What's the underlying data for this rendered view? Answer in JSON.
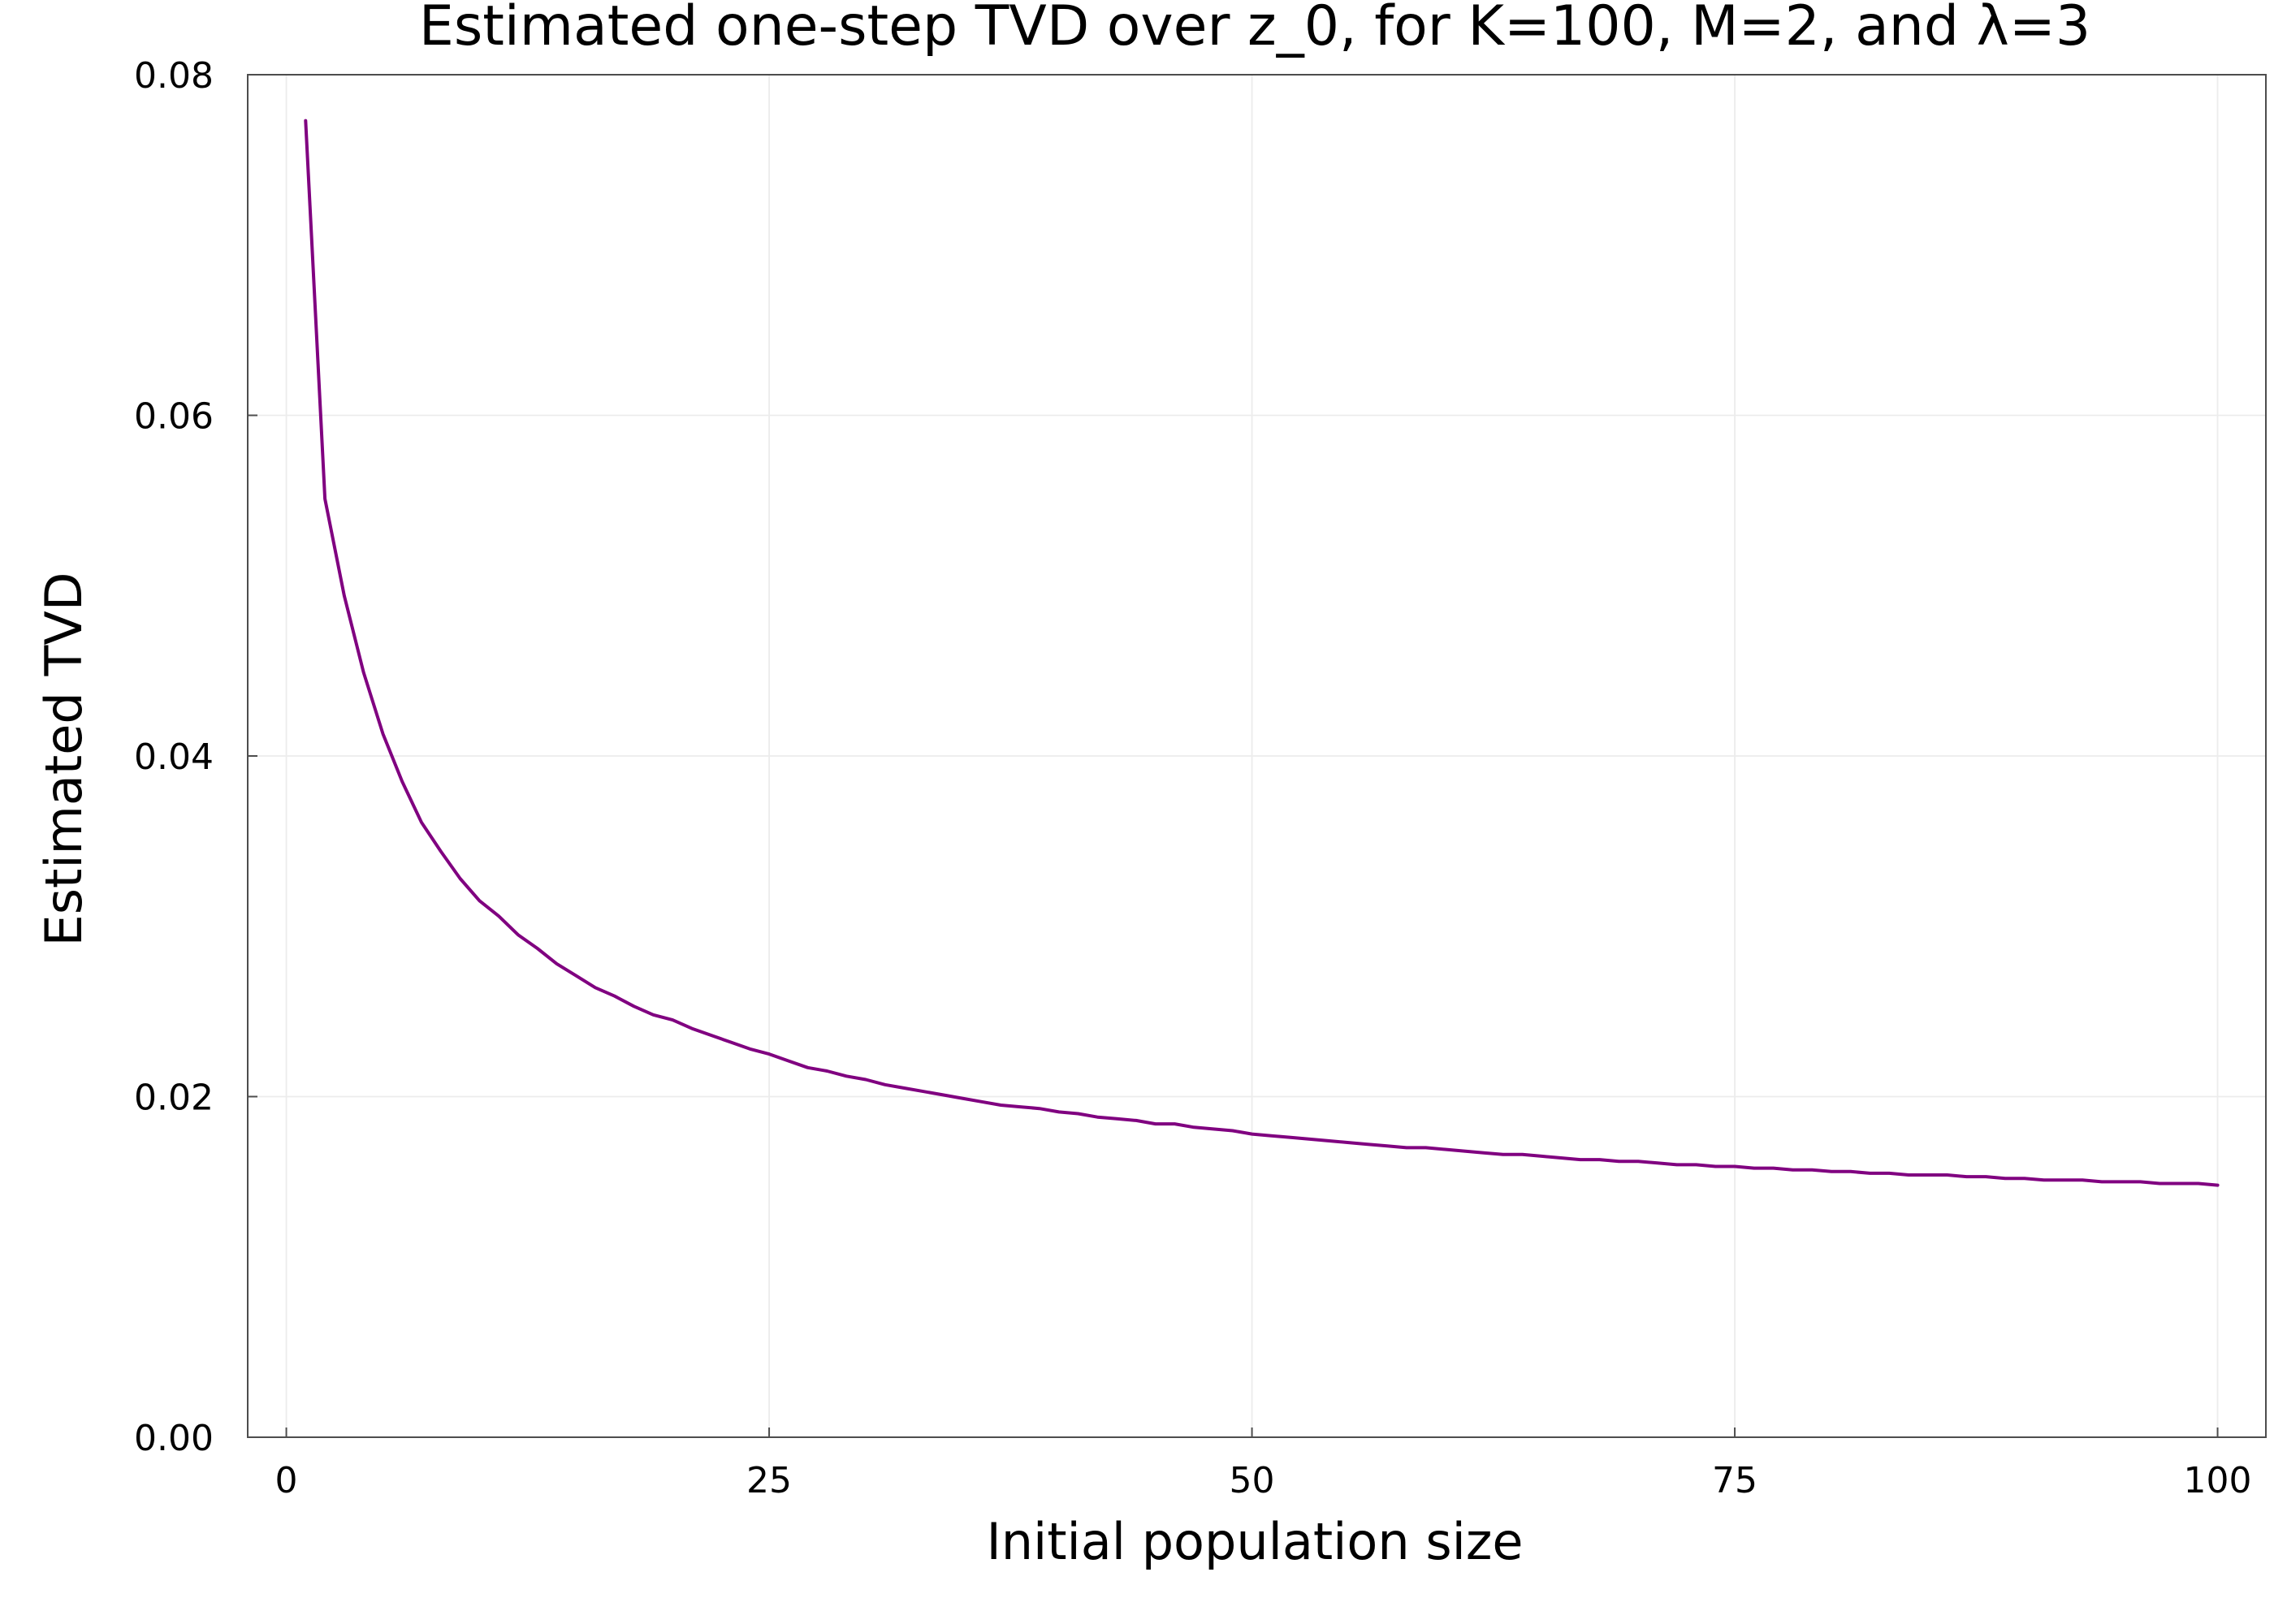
{
  "chart_data": {
    "type": "line",
    "title": "Estimated one-step TVD over z_0, for K=100, M=2, and λ=3",
    "xlabel": "Initial population size",
    "ylabel": "Estimated TVD",
    "xlim": [
      -2,
      102.5
    ],
    "ylim": [
      0,
      0.08
    ],
    "x_ticks": [
      0,
      25,
      50,
      75,
      100
    ],
    "x_tick_labels": [
      "0",
      "25",
      "50",
      "75",
      "100"
    ],
    "y_ticks": [
      0,
      0.02,
      0.04,
      0.06,
      0.08
    ],
    "y_tick_labels": [
      "0.00",
      "0.02",
      "0.04",
      "0.06",
      "0.08"
    ],
    "grid": true,
    "legend": "none",
    "series": [
      {
        "color": "#800080",
        "x": [
          1,
          2,
          3,
          4,
          5,
          6,
          7,
          8,
          9,
          10,
          11,
          12,
          13,
          14,
          15,
          16,
          17,
          18,
          19,
          20,
          21,
          22,
          23,
          24,
          25,
          26,
          27,
          28,
          29,
          30,
          31,
          32,
          33,
          34,
          35,
          36,
          37,
          38,
          39,
          40,
          41,
          42,
          43,
          44,
          45,
          46,
          47,
          48,
          49,
          50,
          51,
          52,
          53,
          54,
          55,
          56,
          57,
          58,
          59,
          60,
          61,
          62,
          63,
          64,
          65,
          66,
          67,
          68,
          69,
          70,
          71,
          72,
          73,
          74,
          75,
          76,
          77,
          78,
          79,
          80,
          81,
          82,
          83,
          84,
          85,
          86,
          87,
          88,
          89,
          90,
          91,
          92,
          93,
          94,
          95,
          96,
          97,
          98,
          99,
          100
        ],
        "values": [
          0.0773,
          0.0551,
          0.0494,
          0.0449,
          0.0413,
          0.0385,
          0.0361,
          0.0344,
          0.0328,
          0.0315,
          0.0306,
          0.0295,
          0.0287,
          0.0278,
          0.0271,
          0.0264,
          0.0259,
          0.0253,
          0.0248,
          0.0245,
          0.024,
          0.0236,
          0.0232,
          0.0228,
          0.0225,
          0.0221,
          0.0217,
          0.0215,
          0.0212,
          0.021,
          0.0207,
          0.0205,
          0.0203,
          0.0201,
          0.0199,
          0.0197,
          0.0195,
          0.0194,
          0.0193,
          0.0191,
          0.019,
          0.0188,
          0.0187,
          0.0186,
          0.0184,
          0.0184,
          0.0182,
          0.0181,
          0.018,
          0.0178,
          0.0177,
          0.0176,
          0.0175,
          0.0174,
          0.0173,
          0.0172,
          0.0171,
          0.017,
          0.017,
          0.0169,
          0.0168,
          0.0167,
          0.0166,
          0.0166,
          0.0165,
          0.0164,
          0.0163,
          0.0163,
          0.0162,
          0.0162,
          0.0161,
          0.016,
          0.016,
          0.0159,
          0.0159,
          0.0158,
          0.0158,
          0.0157,
          0.0157,
          0.0156,
          0.0156,
          0.0155,
          0.0155,
          0.0154,
          0.0154,
          0.0154,
          0.0153,
          0.0153,
          0.0152,
          0.0152,
          0.0151,
          0.0151,
          0.0151,
          0.015,
          0.015,
          0.015,
          0.0149,
          0.0149,
          0.0149,
          0.0148
        ]
      }
    ]
  }
}
